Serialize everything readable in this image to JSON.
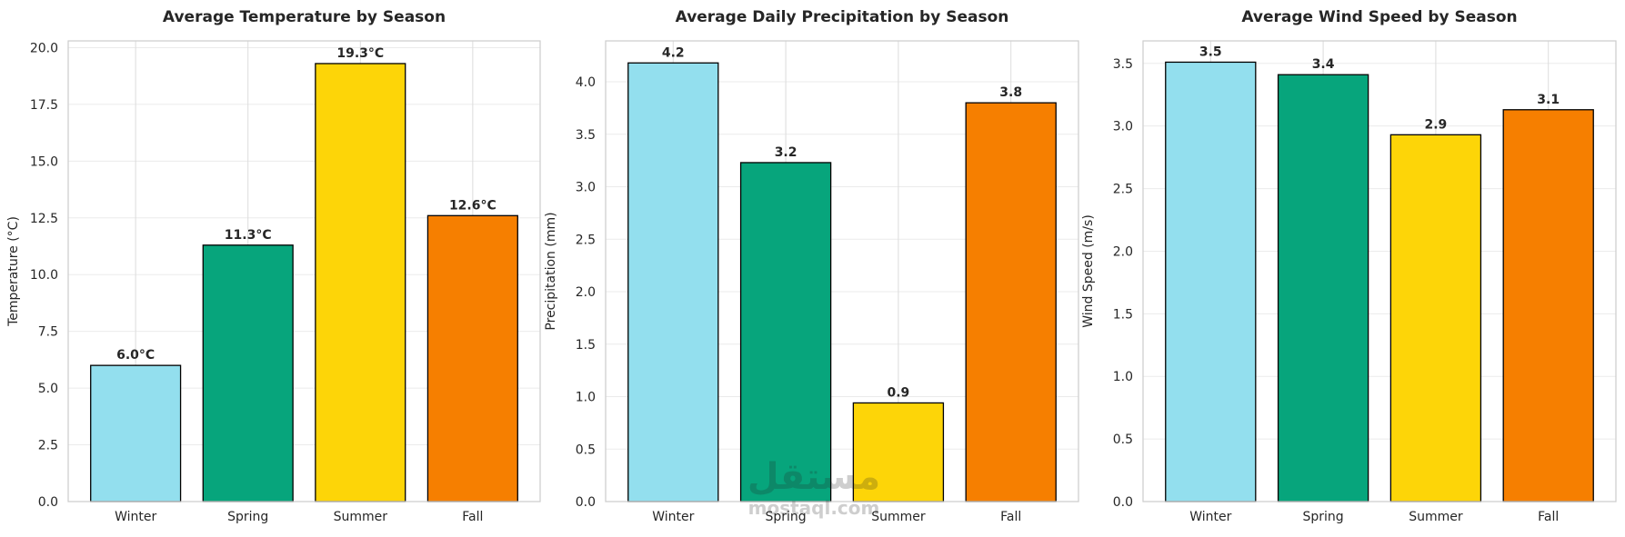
{
  "chart_data": [
    {
      "type": "bar",
      "title": "Average Temperature by Season",
      "xlabel": "",
      "ylabel": "Temperature (°C)",
      "categories": [
        "Winter",
        "Spring",
        "Summer",
        "Fall"
      ],
      "values": [
        6.0,
        11.3,
        19.3,
        12.6
      ],
      "data_labels": [
        "6.0°C",
        "11.3°C",
        "19.3°C",
        "12.6°C"
      ],
      "ylim": [
        0,
        20.3
      ],
      "yticks": [
        "0.0",
        "2.5",
        "5.0",
        "7.5",
        "10.0",
        "12.5",
        "15.0",
        "17.5",
        "20.0"
      ],
      "grid": true
    },
    {
      "type": "bar",
      "title": "Average Daily Precipitation by Season",
      "xlabel": "",
      "ylabel": "Precipitation (mm)",
      "categories": [
        "Winter",
        "Spring",
        "Summer",
        "Fall"
      ],
      "values": [
        4.18,
        3.23,
        0.94,
        3.8
      ],
      "data_labels": [
        "4.2",
        "3.2",
        "0.9",
        "3.8"
      ],
      "ylim": [
        0,
        4.39
      ],
      "yticks": [
        "0.0",
        "0.5",
        "1.0",
        "1.5",
        "2.0",
        "2.5",
        "3.0",
        "3.5",
        "4.0"
      ],
      "grid": true
    },
    {
      "type": "bar",
      "title": "Average Wind Speed by Season",
      "xlabel": "",
      "ylabel": "Wind Speed (m/s)",
      "categories": [
        "Winter",
        "Spring",
        "Summer",
        "Fall"
      ],
      "values": [
        3.51,
        3.41,
        2.93,
        3.13
      ],
      "data_labels": [
        "3.5",
        "3.4",
        "2.9",
        "3.1"
      ],
      "ylim": [
        0,
        3.68
      ],
      "yticks": [
        "0.0",
        "0.5",
        "1.0",
        "1.5",
        "2.0",
        "2.5",
        "3.0",
        "3.5"
      ],
      "grid": true
    }
  ],
  "bar_colors": [
    "#93DFEE",
    "#07A57C",
    "#FDD508",
    "#F67F00"
  ],
  "watermark": {
    "text_arabic": "مستقل",
    "text_latin": "mostaql.com"
  }
}
